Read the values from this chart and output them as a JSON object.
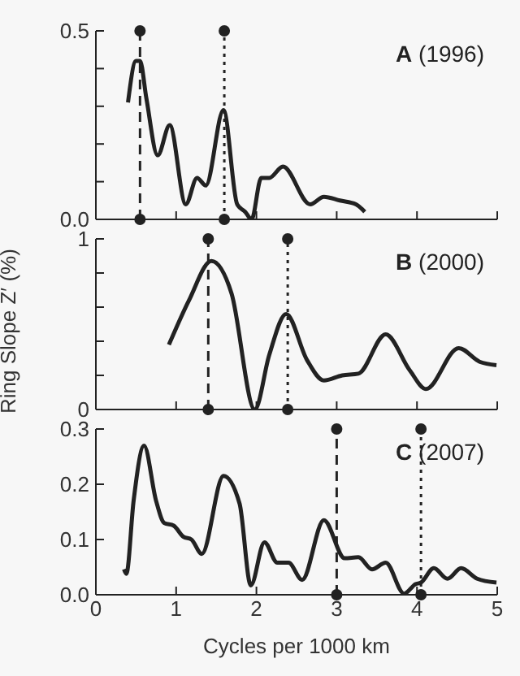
{
  "chart_data": [
    {
      "type": "line",
      "annotations": [
        "A (1996)"
      ],
      "xlim": [
        0,
        5
      ],
      "xticks": [
        0,
        1,
        2,
        3,
        4,
        5
      ],
      "ylim": [
        0,
        0.5
      ],
      "yticks": [
        {
          "value": 0,
          "label": "0.0"
        },
        {
          "value": 0.1,
          "label": null
        },
        {
          "value": 0.2,
          "label": null
        },
        {
          "value": 0.3,
          "label": null
        },
        {
          "value": 0.4,
          "label": null
        },
        0.5
      ],
      "tick_labels": "y",
      "marker": "none",
      "line_style": "solid",
      "series": [
        {
          "color": "#222222",
          "x": [
            0.4,
            0.5,
            0.55,
            0.63,
            0.77,
            0.92,
            1.12,
            1.26,
            1.37,
            1.59,
            1.76,
            1.86,
            1.94,
            2.06,
            2.16,
            2.33,
            2.67,
            2.84,
            3.04,
            3.24,
            3.35
          ],
          "values": [
            0.31,
            0.42,
            0.42,
            0.32,
            0.17,
            0.25,
            0.04,
            0.11,
            0.09,
            0.29,
            0.04,
            0.02,
            0.0,
            0.11,
            0.11,
            0.14,
            0.04,
            0.06,
            0.05,
            0.04,
            0.02
          ]
        }
      ],
      "ref_lines": [
        {
          "axis": "x",
          "value": 0.55,
          "line_style": "dashed",
          "color": "#222222"
        },
        {
          "axis": "x",
          "value": 1.6,
          "line_style": "dotted",
          "color": "#222222"
        }
      ]
    },
    {
      "type": "line",
      "annotations": [
        "B (2000)"
      ],
      "ylabel": "Ring Slope Z′ (%)",
      "xlim": [
        0,
        5
      ],
      "xticks": [
        0,
        1,
        2,
        3,
        4,
        5
      ],
      "ylim": [
        0,
        1
      ],
      "yticks": [
        0,
        {
          "value": 0.2,
          "label": null
        },
        {
          "value": 0.4,
          "label": null
        },
        {
          "value": 0.6,
          "label": null
        },
        {
          "value": 0.8,
          "label": null
        },
        1
      ],
      "tick_labels": "y",
      "marker": "none",
      "line_style": "solid",
      "series": [
        {
          "color": "#222222",
          "x": [
            0.91,
            1.16,
            1.44,
            1.69,
            1.98,
            2.16,
            2.37,
            2.63,
            2.84,
            3.07,
            3.27,
            3.61,
            3.91,
            4.11,
            4.52,
            4.78,
            4.99
          ],
          "values": [
            0.38,
            0.64,
            0.87,
            0.68,
            0.0,
            0.32,
            0.56,
            0.29,
            0.17,
            0.2,
            0.21,
            0.44,
            0.23,
            0.12,
            0.36,
            0.28,
            0.26
          ]
        }
      ],
      "ref_lines": [
        {
          "axis": "x",
          "value": 1.4,
          "line_style": "dashed",
          "color": "#222222"
        },
        {
          "axis": "x",
          "value": 2.39,
          "line_style": "dotted",
          "color": "#222222"
        }
      ]
    },
    {
      "type": "line",
      "annotations": [
        "C (2007)"
      ],
      "xlabel": "Cycles per 1000 km",
      "xlim": [
        0,
        5
      ],
      "xticks": [
        0,
        1,
        2,
        3,
        4,
        5
      ],
      "ylim": [
        0,
        0.3
      ],
      "yticks": [
        {
          "value": 0,
          "label": "0.0"
        },
        0.1,
        0.2,
        0.3
      ],
      "marker": "none",
      "line_style": "solid",
      "series": [
        {
          "color": "#222222",
          "x": [
            0.35,
            0.38,
            0.47,
            0.6,
            0.75,
            0.85,
            0.97,
            1.09,
            1.19,
            1.32,
            1.59,
            1.79,
            1.93,
            2.1,
            2.26,
            2.4,
            2.57,
            2.84,
            3.1,
            3.27,
            3.44,
            3.61,
            3.84,
            3.98,
            4.05,
            4.21,
            4.38,
            4.55,
            4.75,
            4.99
          ],
          "values": [
            0.046,
            0.038,
            0.17,
            0.27,
            0.17,
            0.13,
            0.125,
            0.105,
            0.1,
            0.074,
            0.215,
            0.165,
            0.017,
            0.095,
            0.058,
            0.058,
            0.027,
            0.135,
            0.066,
            0.068,
            0.046,
            0.058,
            0.002,
            0.019,
            0.022,
            0.048,
            0.029,
            0.048,
            0.029,
            0.022
          ]
        }
      ],
      "ref_lines": [
        {
          "axis": "x",
          "value": 3.0,
          "line_style": "dashed",
          "color": "#222222"
        },
        {
          "axis": "x",
          "value": 4.05,
          "line_style": "dotted",
          "color": "#222222"
        }
      ]
    }
  ]
}
